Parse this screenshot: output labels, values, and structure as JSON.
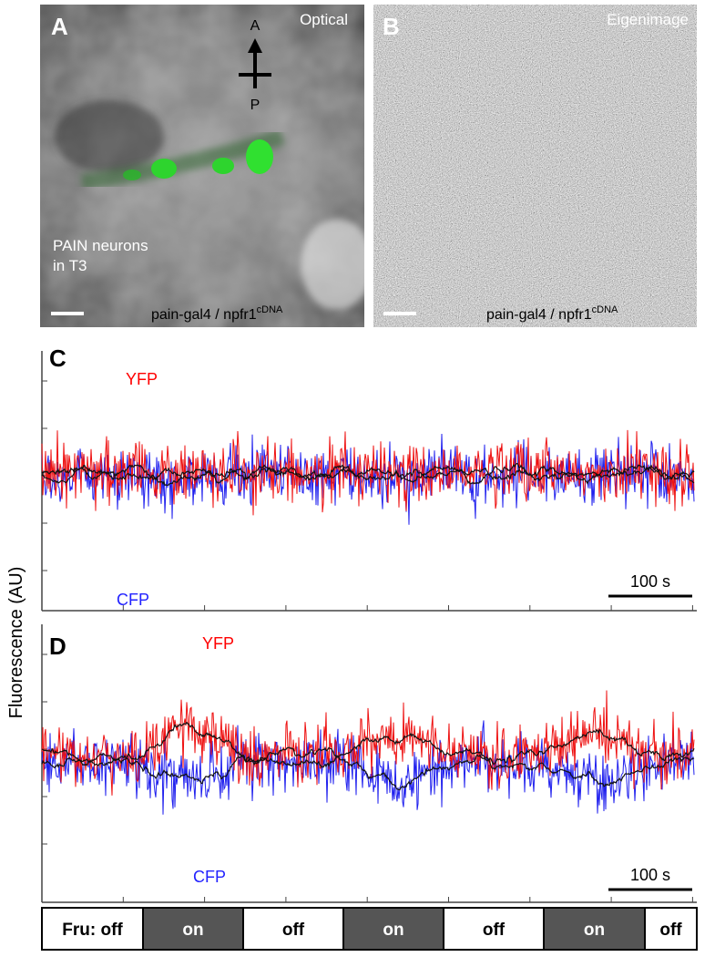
{
  "panel_a": {
    "letter": "A",
    "title": "Optical",
    "orientation_top": "A",
    "orientation_bottom": "P",
    "caption_lines": [
      "PAIN neurons",
      "in T3"
    ],
    "genotype": "pain-gal4 / npfr1",
    "genotype_sup": "cDNA"
  },
  "panel_b": {
    "letter": "B",
    "title": "Eigenimage",
    "genotype": "pain-gal4 / npfr1",
    "genotype_sup": "cDNA"
  },
  "panel_c": {
    "letter": "C",
    "yfp_label": "YFP",
    "cfp_label": "CFP",
    "scale_bar": "100 s"
  },
  "panel_d": {
    "letter": "D",
    "yfp_label": "YFP",
    "cfp_label": "CFP",
    "scale_bar": "100 s"
  },
  "y_axis_label": "Fluorescence (AU)",
  "stimulus": [
    "Fru: off",
    "on",
    "off",
    "on",
    "off",
    "on",
    "off"
  ]
}
